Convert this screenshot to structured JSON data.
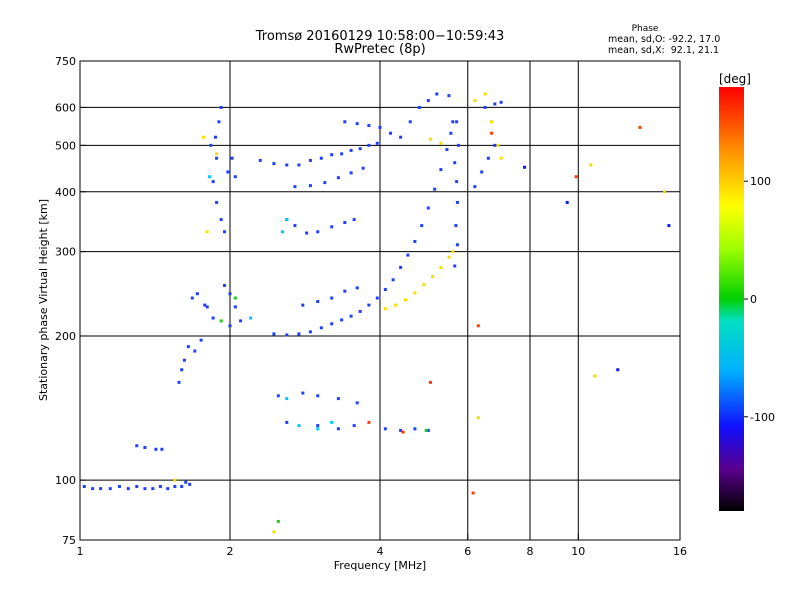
{
  "chart_data": {
    "type": "scatter",
    "title": "Tromsø 20160129 10:58:00−10:59:43",
    "subtitle": "RwPretec (8p)",
    "xlabel": "Frequency [MHz]",
    "ylabel": "Stationary phase Virtual Height [km]",
    "x_scale": "log2",
    "y_scale": "log",
    "xlim": [
      1,
      16
    ],
    "ylim": [
      75,
      750
    ],
    "x_ticks": [
      1,
      2,
      4,
      6,
      8,
      10,
      16
    ],
    "x_tick_labels": [
      "1",
      "2",
      "4",
      "6",
      "8",
      "10",
      "16"
    ],
    "x_grid": [
      2,
      4,
      6,
      8,
      10
    ],
    "y_ticks": [
      75,
      100,
      200,
      300,
      400,
      500,
      600,
      750
    ],
    "y_tick_labels": [
      "75",
      "100",
      "200",
      "300",
      "400",
      "500",
      "600",
      "750"
    ],
    "y_grid": [
      100,
      200,
      300,
      400,
      500,
      600
    ],
    "phase_box": {
      "title": "Phase",
      "line1": "mean, sd,O: -92.2, 17.0",
      "line2": "mean, sd,X:  92.1, 21.1"
    },
    "colorbar": {
      "label": "[deg]",
      "range": [
        -180,
        180
      ],
      "ticks": [
        100,
        0,
        -100
      ],
      "tick_labels": [
        "100",
        "0",
        "-100"
      ]
    },
    "colors": {
      "o_mode": "#1f3fff",
      "x_mode": "#f5e000",
      "grid": "#000000"
    },
    "series": [
      {
        "color": "o_mode",
        "points": [
          [
            1.02,
            97
          ],
          [
            1.06,
            96
          ],
          [
            1.1,
            96
          ],
          [
            1.15,
            96
          ],
          [
            1.2,
            97
          ],
          [
            1.25,
            96
          ],
          [
            1.3,
            97
          ],
          [
            1.35,
            96
          ],
          [
            1.4,
            96
          ],
          [
            1.45,
            97
          ],
          [
            1.5,
            96
          ],
          [
            1.55,
            97
          ],
          [
            1.6,
            97
          ],
          [
            1.63,
            99
          ],
          [
            1.66,
            98
          ],
          [
            1.3,
            118
          ],
          [
            1.35,
            117
          ],
          [
            1.42,
            116
          ],
          [
            1.46,
            116
          ],
          [
            1.58,
            160
          ],
          [
            1.6,
            170
          ],
          [
            1.62,
            178
          ],
          [
            1.65,
            190
          ],
          [
            1.7,
            186
          ],
          [
            1.75,
            196
          ],
          [
            1.68,
            240
          ],
          [
            1.72,
            245
          ],
          [
            1.78,
            232
          ],
          [
            1.8,
            230
          ],
          [
            1.85,
            218
          ],
          [
            1.83,
            500
          ],
          [
            1.87,
            520
          ],
          [
            1.9,
            560
          ],
          [
            1.92,
            600
          ],
          [
            1.88,
            470
          ],
          [
            1.85,
            420
          ],
          [
            1.88,
            380
          ],
          [
            1.92,
            350
          ],
          [
            1.95,
            330
          ],
          [
            1.98,
            440
          ],
          [
            2.02,
            470
          ],
          [
            2.05,
            430
          ],
          [
            1.95,
            255
          ],
          [
            2.0,
            245
          ],
          [
            2.05,
            230
          ],
          [
            2.1,
            215
          ],
          [
            2.0,
            210
          ],
          [
            2.3,
            465
          ],
          [
            2.45,
            458
          ],
          [
            2.6,
            455
          ],
          [
            2.75,
            455
          ],
          [
            2.9,
            465
          ],
          [
            3.05,
            470
          ],
          [
            3.2,
            478
          ],
          [
            3.35,
            480
          ],
          [
            3.5,
            488
          ],
          [
            3.65,
            492
          ],
          [
            3.8,
            500
          ],
          [
            3.95,
            505
          ],
          [
            2.7,
            410
          ],
          [
            2.9,
            412
          ],
          [
            3.1,
            418
          ],
          [
            3.3,
            428
          ],
          [
            3.5,
            438
          ],
          [
            3.7,
            448
          ],
          [
            2.6,
            350
          ],
          [
            2.7,
            340
          ],
          [
            2.85,
            328
          ],
          [
            3.0,
            330
          ],
          [
            3.2,
            338
          ],
          [
            3.4,
            345
          ],
          [
            3.55,
            350
          ],
          [
            2.45,
            202
          ],
          [
            2.6,
            201
          ],
          [
            2.75,
            202
          ],
          [
            2.9,
            204
          ],
          [
            3.05,
            208
          ],
          [
            3.2,
            212
          ],
          [
            3.35,
            216
          ],
          [
            3.5,
            220
          ],
          [
            3.65,
            225
          ],
          [
            3.8,
            232
          ],
          [
            3.95,
            240
          ],
          [
            4.1,
            250
          ],
          [
            4.25,
            262
          ],
          [
            4.4,
            278
          ],
          [
            4.55,
            295
          ],
          [
            4.7,
            315
          ],
          [
            4.85,
            340
          ],
          [
            5.0,
            370
          ],
          [
            5.15,
            405
          ],
          [
            5.3,
            445
          ],
          [
            5.45,
            490
          ],
          [
            5.55,
            530
          ],
          [
            5.6,
            560
          ],
          [
            3.4,
            560
          ],
          [
            3.6,
            555
          ],
          [
            3.8,
            550
          ],
          [
            4.0,
            545
          ],
          [
            4.2,
            530
          ],
          [
            4.4,
            520
          ],
          [
            4.6,
            560
          ],
          [
            4.8,
            600
          ],
          [
            5.0,
            620
          ],
          [
            5.2,
            640
          ],
          [
            5.5,
            635
          ],
          [
            5.7,
            560
          ],
          [
            5.75,
            500
          ],
          [
            5.65,
            460
          ],
          [
            5.7,
            420
          ],
          [
            5.72,
            380
          ],
          [
            5.68,
            340
          ],
          [
            5.72,
            310
          ],
          [
            5.65,
            280
          ],
          [
            2.8,
            232
          ],
          [
            3.0,
            236
          ],
          [
            3.2,
            240
          ],
          [
            3.4,
            248
          ],
          [
            3.6,
            252
          ],
          [
            2.5,
            150
          ],
          [
            2.8,
            152
          ],
          [
            3.0,
            150
          ],
          [
            3.3,
            148
          ],
          [
            3.6,
            145
          ],
          [
            2.6,
            132
          ],
          [
            3.0,
            130
          ],
          [
            3.3,
            128
          ],
          [
            3.55,
            130
          ],
          [
            4.1,
            128
          ],
          [
            4.4,
            127
          ],
          [
            4.7,
            128
          ],
          [
            5.0,
            127
          ],
          [
            6.2,
            410
          ],
          [
            6.4,
            440
          ],
          [
            6.6,
            470
          ],
          [
            6.8,
            500
          ],
          [
            6.5,
            600
          ],
          [
            6.8,
            610
          ],
          [
            7.0,
            615
          ]
        ]
      },
      {
        "color": "x_mode",
        "points": [
          [
            4.1,
            228
          ],
          [
            4.3,
            232
          ],
          [
            4.5,
            238
          ],
          [
            4.7,
            246
          ],
          [
            4.9,
            256
          ],
          [
            5.1,
            266
          ],
          [
            5.3,
            278
          ],
          [
            5.5,
            292
          ],
          [
            5.6,
            300
          ],
          [
            5.05,
            515
          ],
          [
            5.3,
            505
          ],
          [
            6.2,
            620
          ],
          [
            6.5,
            640
          ],
          [
            6.7,
            560
          ],
          [
            6.9,
            500
          ],
          [
            7.0,
            470
          ],
          [
            1.77,
            520
          ],
          [
            1.8,
            330
          ],
          [
            1.88,
            480
          ]
        ]
      },
      {
        "color": "#00c8ff",
        "points": [
          [
            2.6,
            148
          ],
          [
            2.75,
            130
          ],
          [
            3.0,
            128
          ],
          [
            3.2,
            132
          ],
          [
            2.55,
            330
          ],
          [
            2.6,
            350
          ],
          [
            1.82,
            430
          ],
          [
            2.2,
            218
          ]
        ]
      },
      {
        "color": "#ff3a00",
        "points": [
          [
            3.8,
            132
          ],
          [
            4.45,
            126
          ],
          [
            5.05,
            160
          ],
          [
            6.15,
            94
          ],
          [
            6.3,
            210
          ],
          [
            6.7,
            530
          ],
          [
            9.9,
            430
          ],
          [
            13.3,
            545
          ]
        ]
      },
      {
        "color": "#22cc22",
        "points": [
          [
            2.05,
            240
          ],
          [
            2.5,
            82
          ],
          [
            4.95,
            127
          ],
          [
            1.92,
            215
          ]
        ]
      },
      {
        "color": "#e8e000",
        "points": [
          [
            6.3,
            135
          ],
          [
            10.8,
            165
          ],
          [
            10.6,
            455
          ],
          [
            14.9,
            400
          ],
          [
            2.45,
            78
          ],
          [
            1.55,
            100
          ]
        ]
      },
      {
        "color": "#0a1aff",
        "points": [
          [
            12.0,
            170
          ],
          [
            15.2,
            340
          ],
          [
            9.5,
            380
          ],
          [
            7.8,
            450
          ]
        ]
      }
    ]
  }
}
